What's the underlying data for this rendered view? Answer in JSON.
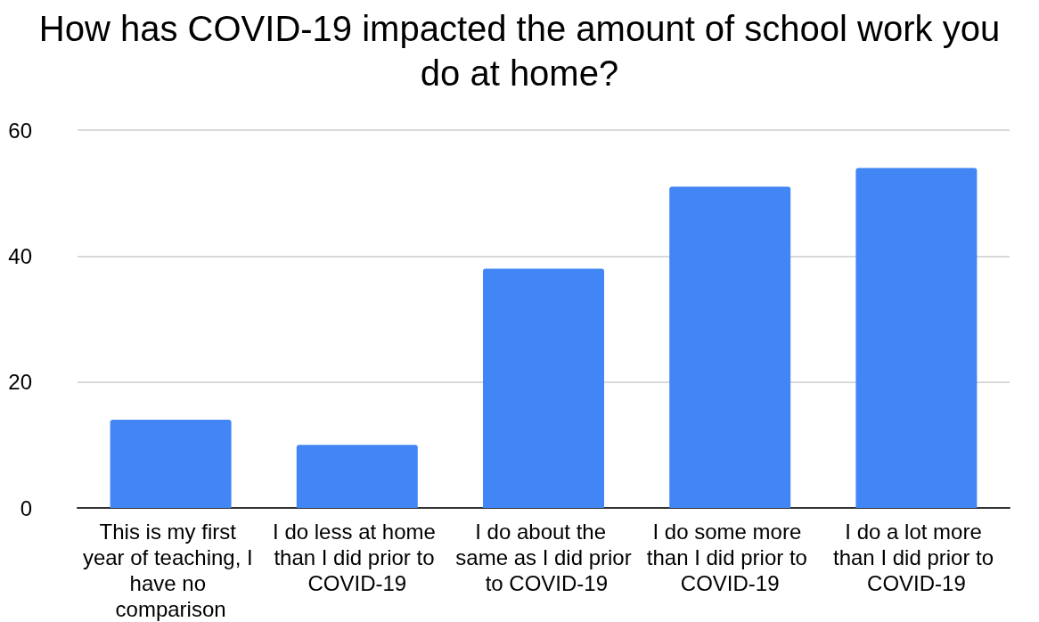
{
  "chart_data": {
    "type": "bar",
    "title": "How has COVID-19 impacted the amount of school work you do at home?",
    "categories": [
      "This is my first year of teaching, I have no comparison",
      "I do less at home than I did prior to COVID-19",
      "I do about the same as I did prior to COVID-19",
      "I do some more than I did prior to COVID-19",
      "I do a lot more than I did prior to COVID-19"
    ],
    "values": [
      14,
      10,
      38,
      51,
      54
    ],
    "color": "#4285f4",
    "ylim": [
      0,
      60
    ],
    "yticks": [
      0,
      20,
      40,
      60
    ],
    "grid": "y"
  }
}
